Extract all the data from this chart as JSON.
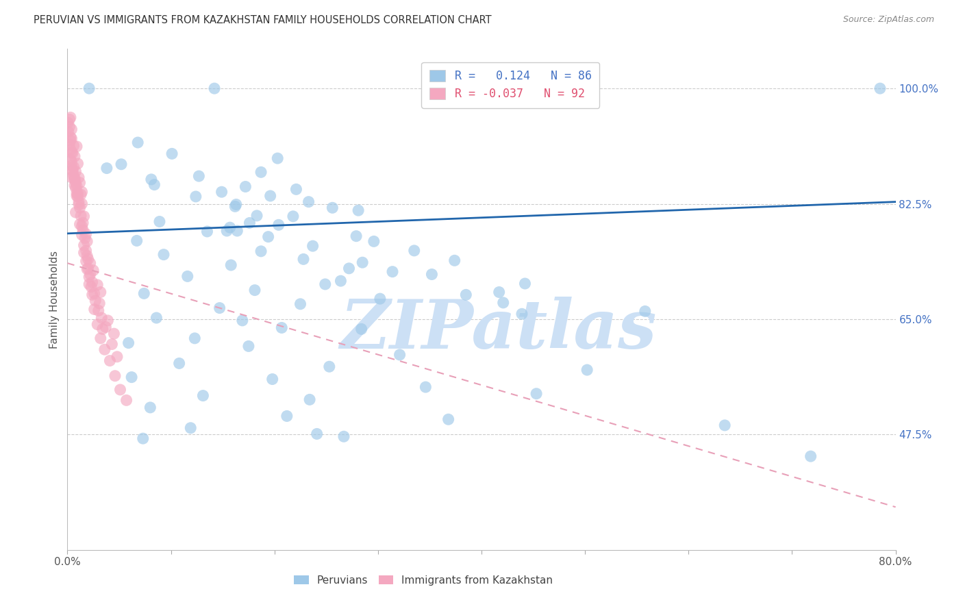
{
  "title": "PERUVIAN VS IMMIGRANTS FROM KAZAKHSTAN FAMILY HOUSEHOLDS CORRELATION CHART",
  "source": "Source: ZipAtlas.com",
  "ylabel": "Family Households",
  "x_min": 0.0,
  "x_max": 80.0,
  "y_min": 30.0,
  "y_max": 106.0,
  "y_ticks": [
    47.5,
    65.0,
    82.5,
    100.0
  ],
  "y_tick_labels": [
    "47.5%",
    "65.0%",
    "82.5%",
    "100.0%"
  ],
  "blue_color": "#9ec8e8",
  "pink_color": "#f4a8c0",
  "blue_line_color": "#2166ac",
  "pink_line_color": "#e8a0b8",
  "watermark": "ZIPatlas",
  "watermark_color": "#cce0f5",
  "blue_line_x0": 0.0,
  "blue_line_y0": 78.0,
  "blue_line_x1": 80.0,
  "blue_line_y1": 82.8,
  "pink_line_x0": 0.0,
  "pink_line_y0": 73.5,
  "pink_line_x1": 80.0,
  "pink_line_y1": 36.5,
  "legend_label_blue": "R =   0.124   N = 86",
  "legend_label_pink": "R = -0.037   N = 92",
  "legend_color_blue": "#9ec8e8",
  "legend_color_pink": "#f4a8c0",
  "legend_text_color_blue": "#4472c4",
  "legend_text_color_pink": "#e05070",
  "bottom_legend_label_blue": "Peruvians",
  "bottom_legend_label_pink": "Immigrants from Kazakhstan",
  "blue_scatter_x": [
    2.1,
    5.2,
    14.2,
    8.1,
    20.3,
    18.7,
    17.2,
    22.1,
    12.4,
    25.6,
    8.9,
    16.3,
    21.8,
    13.5,
    6.7,
    19.4,
    23.7,
    9.3,
    15.8,
    27.2,
    11.6,
    24.9,
    7.4,
    18.1,
    30.2,
    14.7,
    22.5,
    8.6,
    16.9,
    28.4,
    12.3,
    20.7,
    5.9,
    17.5,
    32.1,
    10.8,
    25.3,
    6.2,
    19.8,
    34.6,
    13.1,
    23.4,
    8.0,
    21.2,
    36.8,
    11.9,
    26.7,
    7.3,
    24.1,
    16.4,
    15.4,
    29.6,
    18.7,
    22.8,
    28.5,
    31.4,
    35.2,
    44.2,
    41.7,
    38.5,
    16.2,
    18.3,
    20.4,
    15.7,
    27.9,
    33.5,
    42.1,
    55.8,
    10.1,
    6.8,
    14.9,
    19.6,
    23.3,
    28.1,
    37.4,
    43.9,
    50.2,
    63.5,
    71.8,
    3.8,
    12.7,
    8.4,
    17.6,
    26.4,
    45.3,
    78.5
  ],
  "blue_scatter_y": [
    100.0,
    88.5,
    100.0,
    86.2,
    89.4,
    87.3,
    85.1,
    84.7,
    83.6,
    81.9,
    79.8,
    82.4,
    80.6,
    78.3,
    76.9,
    77.5,
    76.1,
    74.8,
    73.2,
    72.7,
    71.5,
    70.3,
    68.9,
    69.4,
    68.1,
    66.7,
    67.3,
    65.2,
    64.8,
    63.5,
    62.1,
    63.7,
    61.4,
    60.9,
    59.6,
    58.3,
    57.8,
    56.2,
    55.9,
    54.7,
    53.4,
    52.8,
    51.6,
    50.3,
    49.8,
    48.5,
    47.2,
    46.9,
    47.6,
    78.4,
    78.4,
    76.8,
    75.3,
    74.1,
    73.6,
    72.2,
    71.8,
    70.4,
    69.1,
    68.7,
    82.1,
    80.7,
    79.3,
    78.9,
    77.6,
    75.4,
    67.5,
    66.2,
    90.1,
    91.8,
    84.3,
    83.7,
    82.8,
    81.5,
    73.9,
    65.8,
    57.3,
    48.9,
    44.2,
    87.9,
    86.7,
    85.4,
    79.6,
    70.8,
    53.7,
    100.0
  ],
  "pink_scatter_x": [
    0.4,
    0.8,
    0.4,
    0.9,
    0.3,
    1.2,
    0.8,
    0.5,
    1.4,
    0.7,
    1.6,
    0.3,
    1.1,
    0.6,
    1.9,
    0.2,
    1.3,
    0.9,
    2.1,
    0.4,
    1.8,
    0.7,
    1.5,
    0.1,
    2.4,
    1.0,
    1.6,
    0.05,
    1.2,
    2.6,
    0.8,
    2.1,
    0.4,
    1.4,
    2.9,
    0.5,
    1.9,
    0.3,
    1.1,
    3.2,
    2.3,
    0.7,
    1.7,
    0.3,
    1.0,
    3.6,
    2.7,
    0.9,
    2.0,
    0.2,
    3.4,
    1.3,
    2.4,
    0.6,
    1.8,
    0.5,
    4.1,
    3.0,
    1.4,
    2.2,
    0.8,
    1.5,
    3.3,
    0.4,
    4.6,
    1.2,
    2.6,
    0.6,
    2.0,
    3.7,
    0.2,
    1.9,
    3.1,
    1.0,
    4.3,
    1.4,
    2.9,
    0.4,
    2.2,
    5.1,
    0.7,
    1.8,
    3.9,
    1.1,
    3.2,
    0.3,
    4.8,
    2.5,
    0.9,
    5.7,
    1.6,
    4.5
  ],
  "pink_scatter_y": [
    86.5,
    81.2,
    90.3,
    83.7,
    92.1,
    79.4,
    84.9,
    87.6,
    77.8,
    85.3,
    75.1,
    89.2,
    82.4,
    86.8,
    72.6,
    91.5,
    80.7,
    84.1,
    70.3,
    88.9,
    73.8,
    86.2,
    78.5,
    93.4,
    68.7,
    83.6,
    76.2,
    94.8,
    81.9,
    66.5,
    85.7,
    71.4,
    88.3,
    79.1,
    64.2,
    87.5,
    74.6,
    90.7,
    82.8,
    62.1,
    69.9,
    86.4,
    77.3,
    92.6,
    84.1,
    60.4,
    67.8,
    85.2,
    72.7,
    95.3,
    63.5,
    83.9,
    70.6,
    88.1,
    75.4,
    90.2,
    58.7,
    66.3,
    82.5,
    71.8,
    87.4,
    79.6,
    65.2,
    93.8,
    56.4,
    85.7,
    68.9,
    91.3,
    74.1,
    63.8,
    94.2,
    76.8,
    67.4,
    88.6,
    61.2,
    84.3,
    70.2,
    92.4,
    73.5,
    54.3,
    89.7,
    77.9,
    64.8,
    86.5,
    69.1,
    95.6,
    59.3,
    72.4,
    91.2,
    52.7,
    80.6,
    62.8
  ]
}
